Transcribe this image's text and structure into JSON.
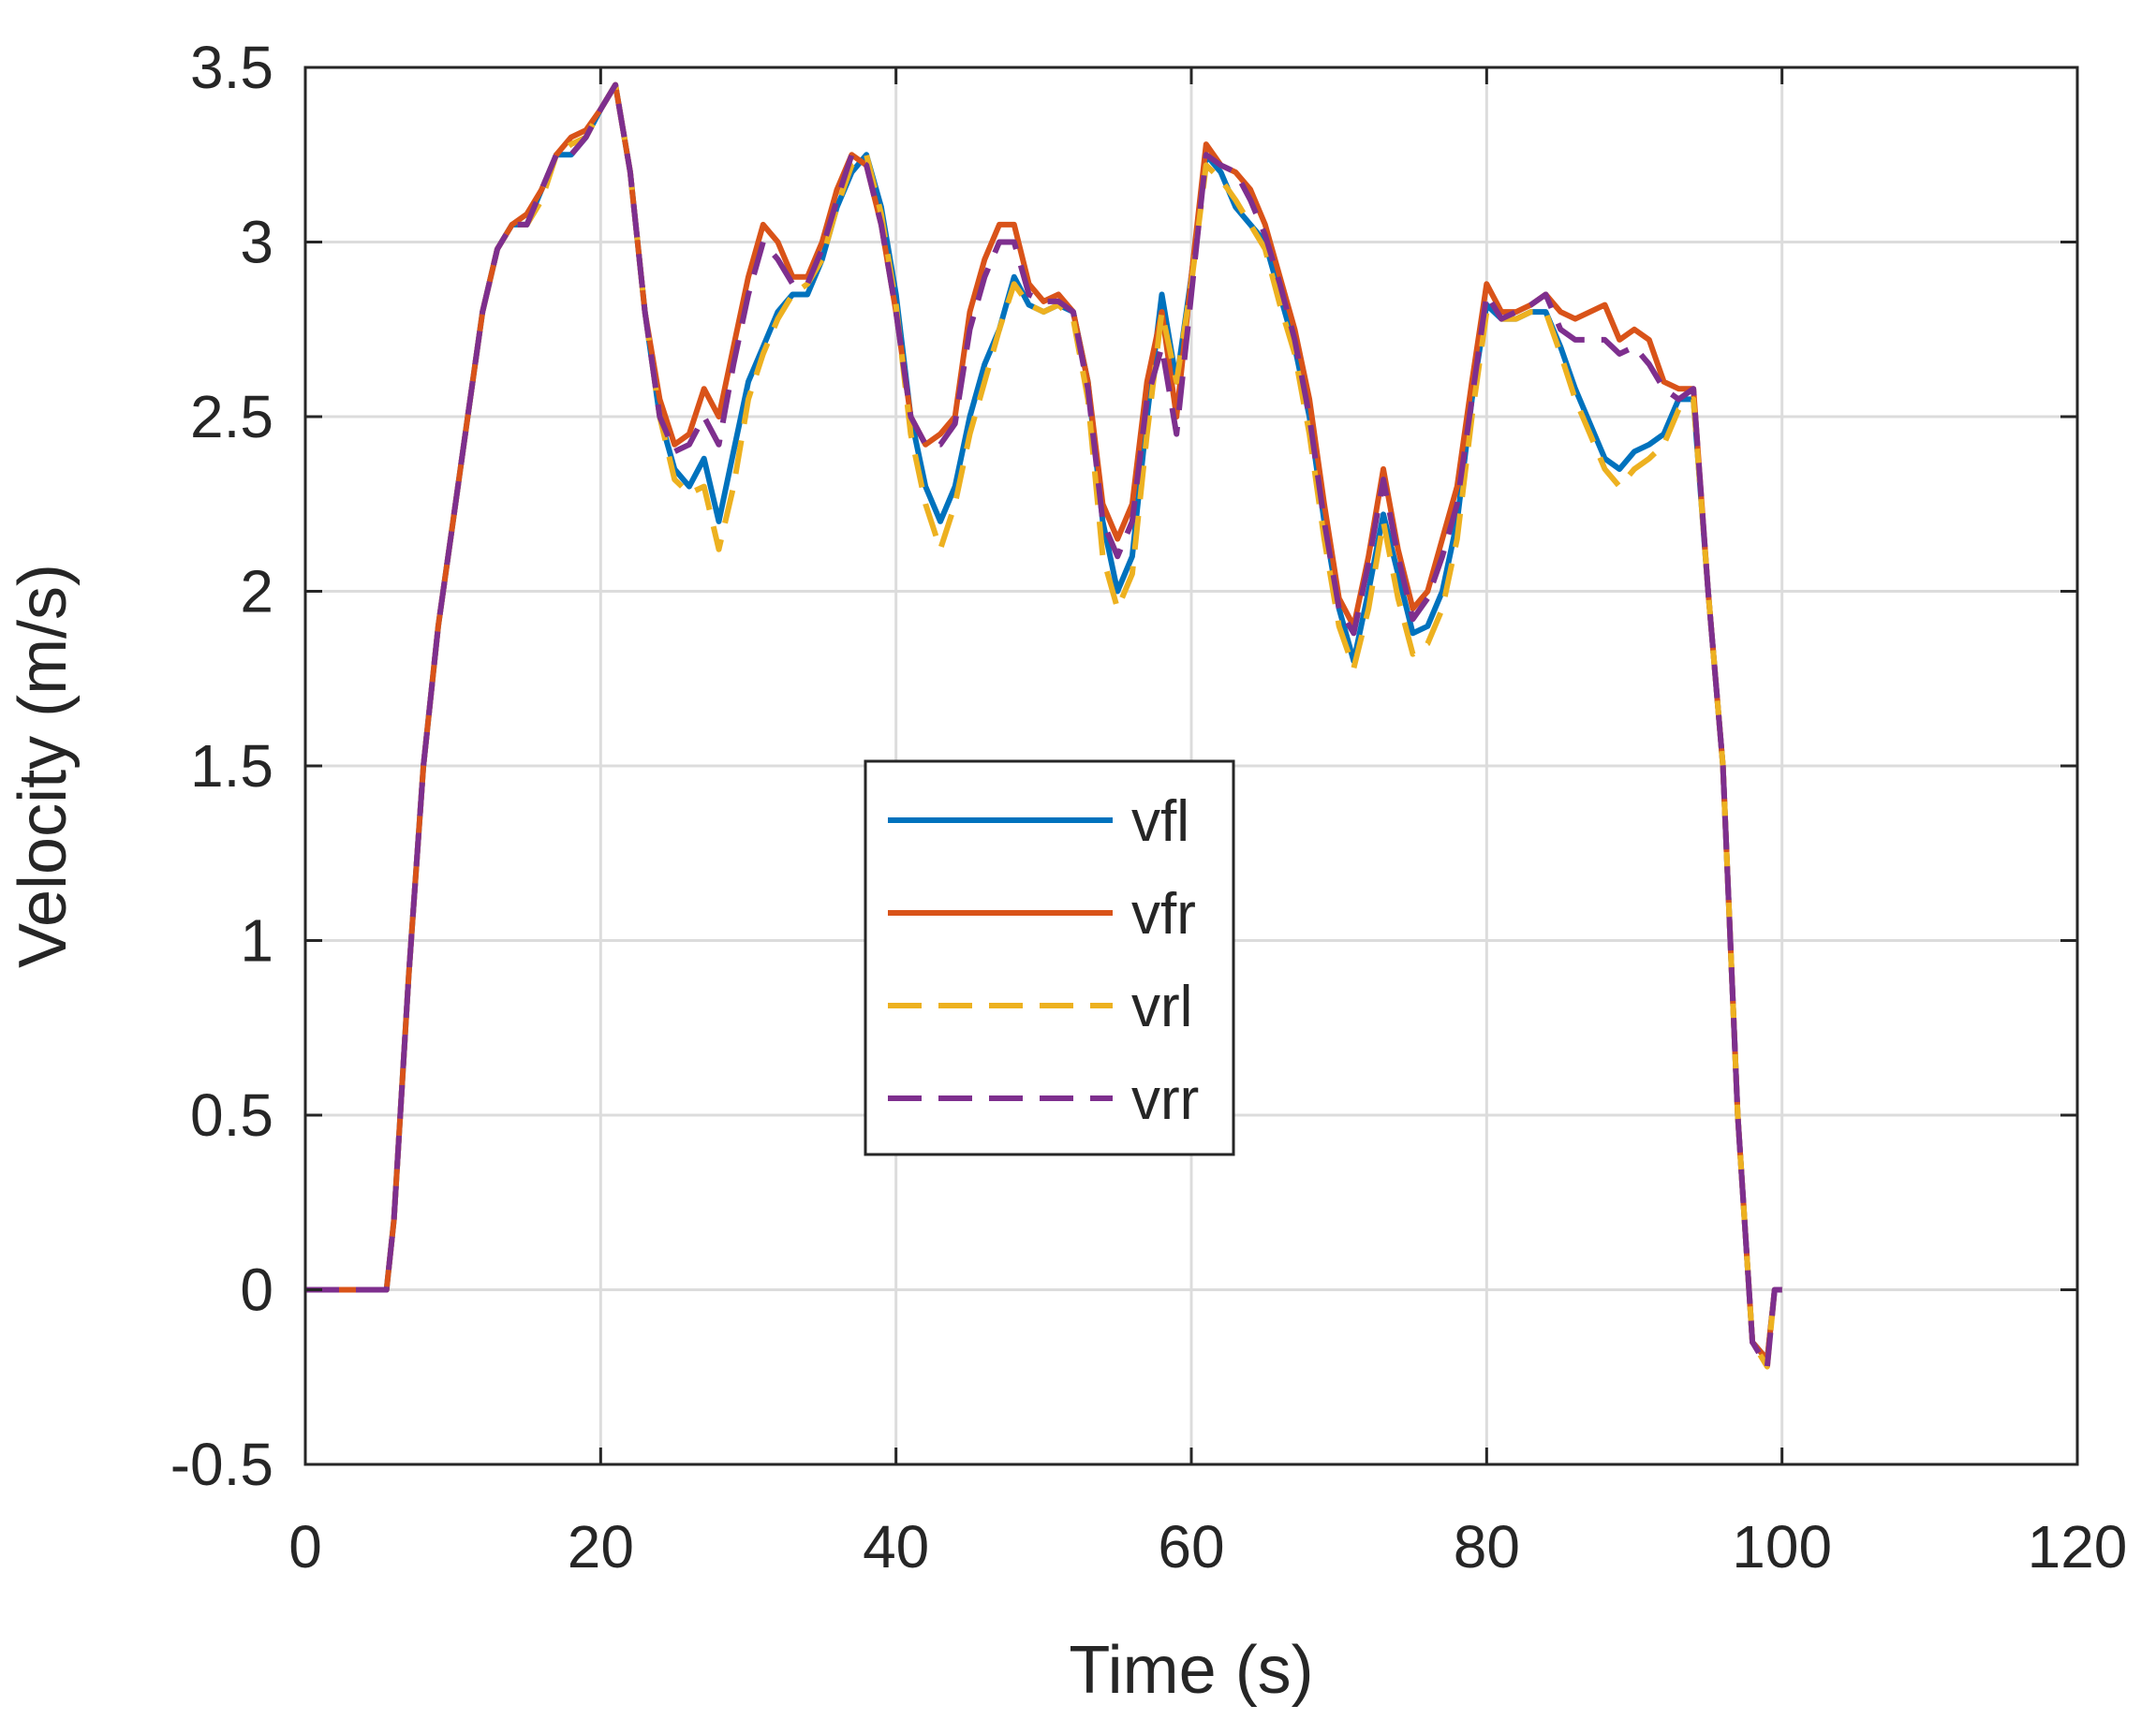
{
  "chart_data": {
    "type": "line",
    "title": "",
    "xlabel": "Time (s)",
    "ylabel": "Velocity (m/s)",
    "xlim": [
      0,
      120
    ],
    "ylim": [
      -0.5,
      3.5
    ],
    "xticks": [
      0,
      20,
      40,
      60,
      80,
      100,
      120
    ],
    "xtick_labels": [
      "0",
      "20",
      "40",
      "60",
      "80",
      "100",
      "120"
    ],
    "yticks": [
      -0.5,
      0,
      0.5,
      1,
      1.5,
      2,
      2.5,
      3,
      3.5
    ],
    "ytick_labels": [
      "-0.5",
      "0",
      "0.5",
      "1",
      "1.5",
      "2",
      "2.5",
      "3",
      "3.5"
    ],
    "grid": true,
    "legend_position": "center",
    "x": [
      0,
      5,
      5.5,
      6,
      7,
      8,
      9,
      10,
      11,
      12,
      13,
      14,
      15,
      16,
      17,
      18,
      19,
      20,
      21,
      22,
      23,
      24,
      25,
      26,
      27,
      28,
      29,
      30,
      31,
      32,
      33,
      34,
      35,
      36,
      37,
      38,
      39,
      40,
      41,
      42,
      43,
      44,
      45,
      46,
      47,
      48,
      49,
      50,
      51,
      52,
      53,
      54,
      55,
      56,
      57,
      58,
      59,
      60,
      61,
      62,
      63,
      64,
      65,
      66,
      67,
      68,
      69,
      70,
      71,
      72,
      73,
      74,
      75,
      76,
      77,
      78,
      79,
      80,
      81,
      82,
      83,
      84,
      85,
      86,
      87,
      88,
      89,
      90,
      91,
      92,
      93,
      94,
      95,
      96,
      97,
      98,
      99,
      99.5,
      100
    ],
    "series": [
      {
        "name": "vfl",
        "color": "#0072BD",
        "dash": "solid",
        "values": [
          0,
          0,
          0,
          0.2,
          0.9,
          1.5,
          1.9,
          2.2,
          2.5,
          2.8,
          2.98,
          3.05,
          3.05,
          3.15,
          3.25,
          3.25,
          3.3,
          3.38,
          3.45,
          3.2,
          2.8,
          2.5,
          2.35,
          2.3,
          2.38,
          2.2,
          2.4,
          2.6,
          2.7,
          2.8,
          2.85,
          2.85,
          2.95,
          3.1,
          3.2,
          3.25,
          3.1,
          2.85,
          2.5,
          2.3,
          2.2,
          2.3,
          2.5,
          2.65,
          2.75,
          2.9,
          2.82,
          2.8,
          2.82,
          2.8,
          2.6,
          2.2,
          2.0,
          2.1,
          2.5,
          2.85,
          2.6,
          2.9,
          3.25,
          3.2,
          3.1,
          3.05,
          3.0,
          2.85,
          2.7,
          2.5,
          2.2,
          1.95,
          1.8,
          2.0,
          2.22,
          2.05,
          1.88,
          1.9,
          2.0,
          2.2,
          2.55,
          2.82,
          2.78,
          2.78,
          2.8,
          2.8,
          2.7,
          2.58,
          2.48,
          2.38,
          2.35,
          2.4,
          2.42,
          2.45,
          2.55,
          2.55,
          2.0,
          1.5,
          0.5,
          -0.15,
          -0.2,
          0,
          0
        ]
      },
      {
        "name": "vfr",
        "color": "#D95319",
        "dash": "solid",
        "values": [
          0,
          0,
          0,
          0.2,
          0.9,
          1.5,
          1.9,
          2.2,
          2.5,
          2.8,
          2.98,
          3.05,
          3.08,
          3.15,
          3.25,
          3.3,
          3.32,
          3.38,
          3.45,
          3.2,
          2.8,
          2.55,
          2.42,
          2.45,
          2.58,
          2.5,
          2.7,
          2.9,
          3.05,
          3.0,
          2.9,
          2.9,
          3.0,
          3.15,
          3.25,
          3.22,
          3.05,
          2.8,
          2.5,
          2.42,
          2.45,
          2.5,
          2.8,
          2.95,
          3.05,
          3.05,
          2.88,
          2.83,
          2.85,
          2.8,
          2.6,
          2.25,
          2.15,
          2.25,
          2.6,
          2.8,
          2.5,
          2.9,
          3.28,
          3.22,
          3.2,
          3.15,
          3.05,
          2.9,
          2.75,
          2.55,
          2.25,
          1.98,
          1.9,
          2.1,
          2.35,
          2.12,
          1.95,
          2.0,
          2.15,
          2.3,
          2.6,
          2.88,
          2.8,
          2.8,
          2.82,
          2.85,
          2.8,
          2.78,
          2.8,
          2.82,
          2.72,
          2.75,
          2.72,
          2.6,
          2.58,
          2.58,
          2.0,
          1.5,
          0.5,
          -0.15,
          -0.2,
          0,
          0
        ]
      },
      {
        "name": "vrl",
        "color": "#EDB120",
        "dash": "dashed",
        "values": [
          0,
          0,
          0,
          0.2,
          0.9,
          1.5,
          1.9,
          2.2,
          2.5,
          2.8,
          2.98,
          3.05,
          3.05,
          3.12,
          3.25,
          3.28,
          3.3,
          3.38,
          3.45,
          3.2,
          2.8,
          2.5,
          2.32,
          2.28,
          2.3,
          2.12,
          2.3,
          2.55,
          2.68,
          2.78,
          2.85,
          2.88,
          2.95,
          3.1,
          3.22,
          3.25,
          3.08,
          2.82,
          2.45,
          2.25,
          2.12,
          2.25,
          2.45,
          2.6,
          2.75,
          2.88,
          2.82,
          2.8,
          2.82,
          2.78,
          2.55,
          2.1,
          1.95,
          2.05,
          2.45,
          2.8,
          2.6,
          2.88,
          3.22,
          3.18,
          3.12,
          3.05,
          2.98,
          2.82,
          2.68,
          2.45,
          2.15,
          1.9,
          1.78,
          1.95,
          2.2,
          1.98,
          1.82,
          1.85,
          1.95,
          2.15,
          2.5,
          2.8,
          2.78,
          2.78,
          2.8,
          2.8,
          2.68,
          2.55,
          2.45,
          2.35,
          2.3,
          2.35,
          2.38,
          2.42,
          2.52,
          2.55,
          2.0,
          1.5,
          0.5,
          -0.15,
          -0.22,
          0,
          0
        ]
      },
      {
        "name": "vrr",
        "color": "#7E2F8E",
        "dash": "dashed",
        "values": [
          0,
          0,
          0,
          0.2,
          0.9,
          1.5,
          1.9,
          2.2,
          2.5,
          2.8,
          2.98,
          3.05,
          3.05,
          3.15,
          3.25,
          3.25,
          3.3,
          3.38,
          3.45,
          3.2,
          2.8,
          2.5,
          2.4,
          2.42,
          2.5,
          2.42,
          2.65,
          2.85,
          3.0,
          2.95,
          2.88,
          2.88,
          2.98,
          3.12,
          3.25,
          3.22,
          3.05,
          2.8,
          2.5,
          2.42,
          2.42,
          2.48,
          2.75,
          2.9,
          3.0,
          3.0,
          2.85,
          2.83,
          2.83,
          2.8,
          2.58,
          2.2,
          2.1,
          2.2,
          2.55,
          2.7,
          2.45,
          2.85,
          3.25,
          3.22,
          3.2,
          3.12,
          3.02,
          2.88,
          2.72,
          2.5,
          2.2,
          1.95,
          1.88,
          2.08,
          2.32,
          2.1,
          1.92,
          1.98,
          2.1,
          2.25,
          2.55,
          2.85,
          2.78,
          2.8,
          2.82,
          2.85,
          2.75,
          2.72,
          2.72,
          2.72,
          2.68,
          2.7,
          2.65,
          2.58,
          2.55,
          2.58,
          2.0,
          1.5,
          0.5,
          -0.15,
          -0.22,
          0,
          0
        ]
      }
    ]
  }
}
